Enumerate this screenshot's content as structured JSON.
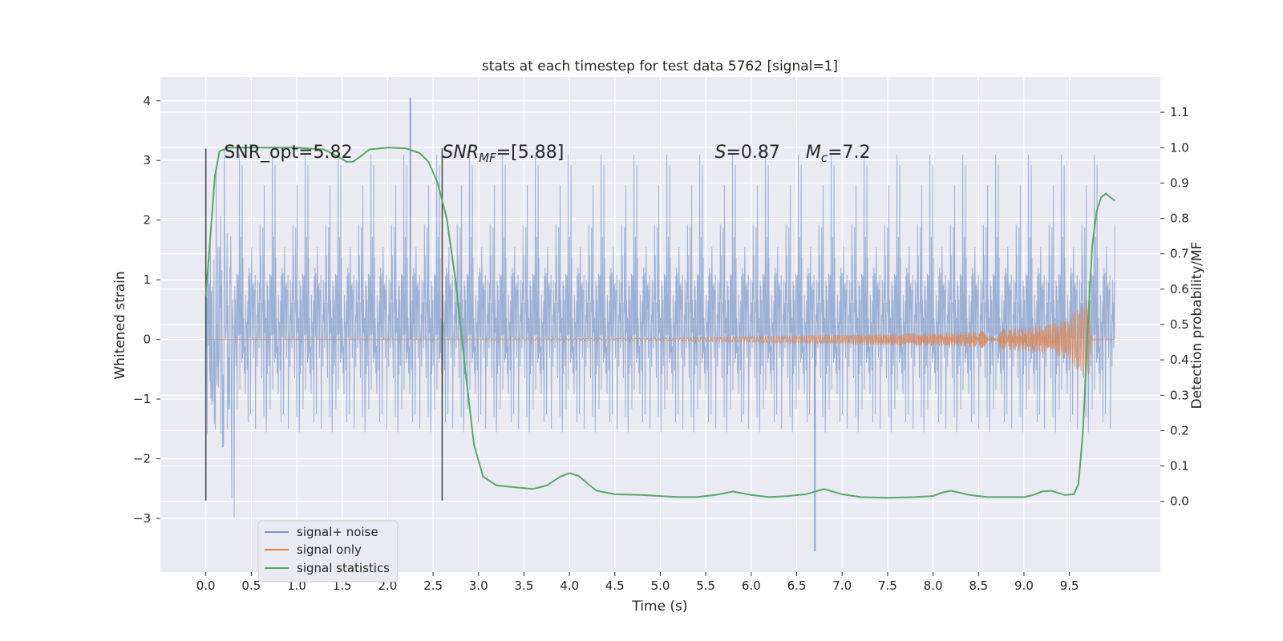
{
  "chart_data": {
    "type": "line",
    "title": "stats at each timestep for test data 5762 [signal=1]",
    "xlabel": "Time (s)",
    "ylabel": "Whitened strain",
    "ylabel_right": "Detection probability/MF",
    "xlim": [
      -0.5,
      10.5
    ],
    "ylim": [
      -3.9,
      4.4
    ],
    "ylim_right": [
      -0.2,
      1.2
    ],
    "x_ticks": [
      0.0,
      0.5,
      1.0,
      1.5,
      2.0,
      2.5,
      3.0,
      3.5,
      4.0,
      4.5,
      5.0,
      5.5,
      6.0,
      6.5,
      7.0,
      7.5,
      8.0,
      8.5,
      9.0,
      9.5
    ],
    "x_tick_labels": [
      "0.0",
      "0.5",
      "1.0",
      "1.5",
      "2.0",
      "2.5",
      "3.0",
      "3.5",
      "4.0",
      "4.5",
      "5.0",
      "5.5",
      "6.0",
      "6.5",
      "7.0",
      "7.5",
      "8.0",
      "8.5",
      "9.0",
      "9.5"
    ],
    "y_ticks": [
      4,
      3,
      2,
      1,
      0,
      -1,
      -2,
      -3
    ],
    "y_tick_labels": [
      "4",
      "3",
      "2",
      "1",
      "0",
      "−1",
      "−2",
      "−3"
    ],
    "y_ticks_right": [
      1.1,
      1.0,
      0.9,
      0.8,
      0.7,
      0.6,
      0.5,
      0.4,
      0.3,
      0.2,
      0.1,
      0.0
    ],
    "y_tick_labels_right": [
      "1.1",
      "1.0",
      "0.9",
      "0.8",
      "0.7",
      "0.6",
      "0.5",
      "0.4",
      "0.3",
      "0.2",
      "0.1",
      "0.0"
    ],
    "grid": true,
    "legend_position": "bottom-left",
    "colors": {
      "background": "#eaeaf2",
      "grid": "#ffffff",
      "noise": "#7b97c8",
      "signal": "#dd8452",
      "stats": "#55a868",
      "marker": "#444444"
    },
    "series": [
      {
        "name": "signal+ noise",
        "axis": "left",
        "noise_amplitude": 1.45,
        "spike_max": 4.05,
        "spike_min": -3.55,
        "x_range": [
          0.0,
          10.0
        ]
      },
      {
        "name": "signal only",
        "axis": "left",
        "envelope_x": [
          0.0,
          5.0,
          6.0,
          7.0,
          8.0,
          8.5,
          9.0,
          9.3,
          9.5,
          9.6,
          9.7,
          9.75,
          10.0
        ],
        "envelope_y": [
          0.0,
          0.02,
          0.05,
          0.08,
          0.11,
          0.14,
          0.2,
          0.26,
          0.36,
          0.55,
          0.7,
          0.02,
          0.0
        ]
      },
      {
        "name": "signal statistics",
        "axis": "right",
        "x": [
          0.0,
          0.05,
          0.1,
          0.15,
          0.25,
          0.5,
          1.0,
          1.3,
          1.45,
          1.55,
          1.62,
          1.7,
          1.8,
          2.0,
          2.2,
          2.35,
          2.45,
          2.55,
          2.65,
          2.75,
          2.85,
          2.95,
          3.05,
          3.2,
          3.4,
          3.6,
          3.75,
          3.9,
          4.0,
          4.1,
          4.2,
          4.3,
          4.5,
          4.8,
          5.0,
          5.2,
          5.4,
          5.6,
          5.8,
          6.0,
          6.2,
          6.4,
          6.6,
          6.8,
          7.0,
          7.2,
          7.5,
          7.8,
          8.0,
          8.1,
          8.2,
          8.4,
          8.6,
          8.8,
          9.0,
          9.1,
          9.2,
          9.3,
          9.45,
          9.55,
          9.6,
          9.65,
          9.7,
          9.75,
          9.8,
          9.85,
          9.9,
          9.95,
          10.0
        ],
        "y": [
          0.58,
          0.75,
          0.92,
          0.99,
          1.0,
          1.0,
          1.0,
          0.995,
          0.975,
          0.96,
          0.96,
          0.975,
          0.995,
          1.0,
          0.998,
          0.985,
          0.96,
          0.9,
          0.8,
          0.62,
          0.38,
          0.16,
          0.07,
          0.045,
          0.04,
          0.035,
          0.045,
          0.07,
          0.08,
          0.072,
          0.05,
          0.03,
          0.02,
          0.018,
          0.015,
          0.012,
          0.012,
          0.018,
          0.028,
          0.018,
          0.012,
          0.015,
          0.02,
          0.035,
          0.02,
          0.012,
          0.01,
          0.012,
          0.015,
          0.025,
          0.03,
          0.018,
          0.012,
          0.012,
          0.012,
          0.018,
          0.028,
          0.03,
          0.018,
          0.02,
          0.05,
          0.2,
          0.48,
          0.72,
          0.82,
          0.86,
          0.87,
          0.86,
          0.85
        ]
      }
    ],
    "vertical_markers": [
      {
        "x": 0.0,
        "y_from": -2.7,
        "y_to": 3.2
      },
      {
        "x": 2.6,
        "y_from": -2.7,
        "y_to": 3.2
      }
    ],
    "annotations": [
      {
        "text": "SNR_opt=5.82",
        "x": 0.2,
        "y": 3.15,
        "style": "normal"
      },
      {
        "text_main": "SNR",
        "text_sub": "MF",
        "text_rest": "=[5.88]",
        "x": 2.6,
        "y": 3.15,
        "style": "italic"
      },
      {
        "text_main": "S",
        "text_rest": "=0.87",
        "x": 5.6,
        "y": 3.15,
        "style": "italic"
      },
      {
        "text_main": "M",
        "text_sub": "c",
        "text_rest": "=7.2",
        "x": 6.6,
        "y": 3.15,
        "style": "italic"
      }
    ]
  }
}
